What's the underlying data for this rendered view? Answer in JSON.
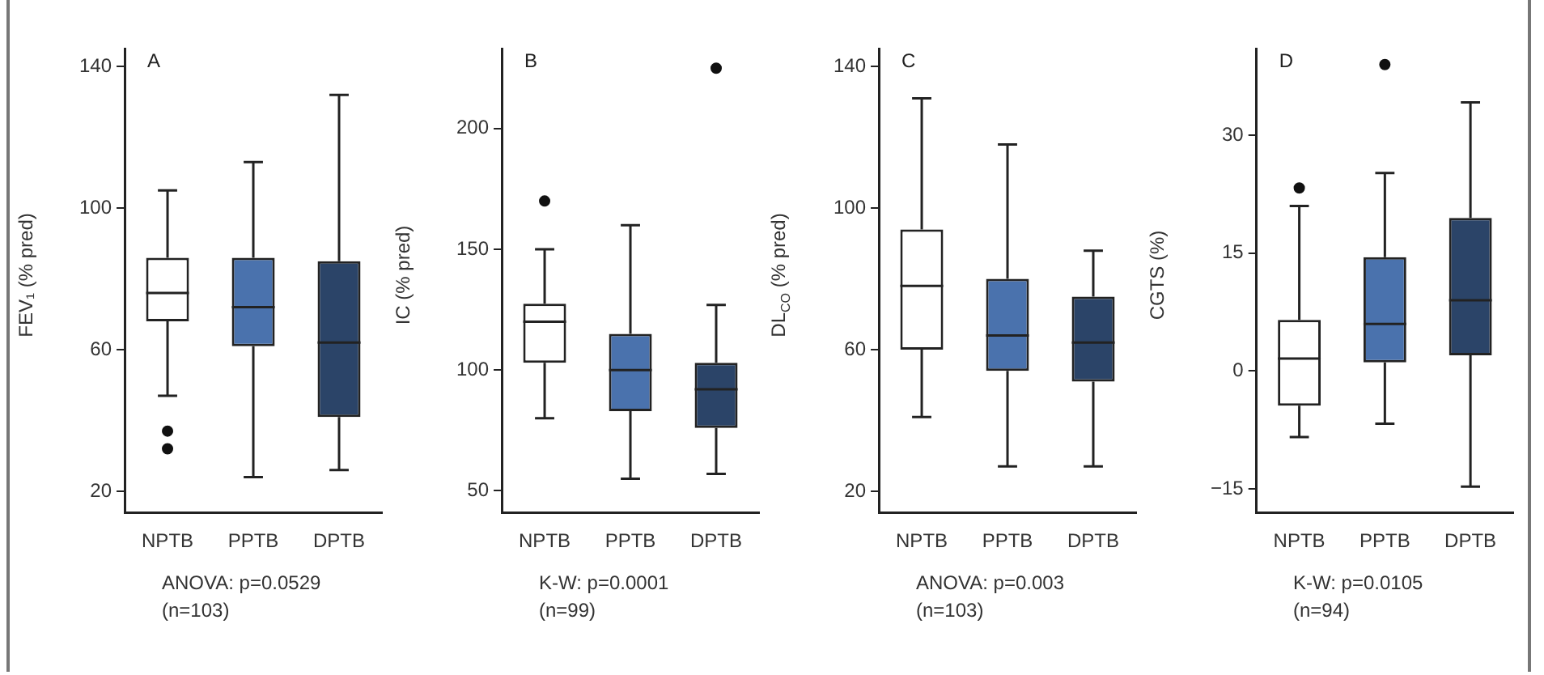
{
  "chart_data": [
    {
      "type": "box",
      "title": "A",
      "ylabel": "FEV₁ (% pred)",
      "categories": [
        "NPTB",
        "PPTB",
        "DPTB"
      ],
      "colors": [
        "#ffffff",
        "#4a72ad",
        "#2b4468"
      ],
      "ylim": [
        14,
        145
      ],
      "yticks": [
        20,
        60,
        100,
        140
      ],
      "boxes": [
        {
          "low": 47,
          "q1": 68,
          "median": 76,
          "q3": 86,
          "high": 105,
          "outliers": [
            37,
            32
          ]
        },
        {
          "low": 24,
          "q1": 61,
          "median": 72,
          "q3": 86,
          "high": 113
        },
        {
          "low": 26,
          "q1": 41,
          "median": 62,
          "q3": 85,
          "high": 132
        }
      ],
      "annotations": [
        "ANOVA: p=0.0529",
        "(n=103)"
      ]
    },
    {
      "type": "box",
      "title": "B",
      "ylabel": "IC (% pred)",
      "categories": [
        "NPTB",
        "PPTB",
        "DPTB"
      ],
      "colors": [
        "#ffffff",
        "#4a72ad",
        "#2b4468"
      ],
      "ylim": [
        41,
        233
      ],
      "yticks": [
        50,
        100,
        150,
        200
      ],
      "boxes": [
        {
          "low": 80,
          "q1": 103,
          "median": 120,
          "q3": 127.5,
          "high": 150,
          "outliers": [
            170
          ]
        },
        {
          "low": 55,
          "q1": 83,
          "median": 100,
          "q3": 115,
          "high": 160
        },
        {
          "low": 57,
          "q1": 76,
          "median": 92,
          "q3": 103,
          "high": 127,
          "outliers": [
            225
          ]
        }
      ],
      "annotations": [
        "K-W: p=0.0001",
        "(n=99)"
      ]
    },
    {
      "type": "box",
      "title": "C",
      "ylabel": "DL$_{CO}$ (% pred)",
      "categories": [
        "NPTB",
        "PPTB",
        "DPTB"
      ],
      "colors": [
        "#ffffff",
        "#4a72ad",
        "#2b4468"
      ],
      "ylim": [
        14,
        145
      ],
      "yticks": [
        20,
        60,
        100,
        140
      ],
      "boxes": [
        {
          "low": 41,
          "q1": 60,
          "median": 78,
          "q3": 94,
          "high": 131
        },
        {
          "low": 27,
          "q1": 54,
          "median": 64,
          "q3": 80,
          "high": 118
        },
        {
          "low": 27,
          "q1": 51,
          "median": 62,
          "q3": 75,
          "high": 88
        }
      ],
      "annotations": [
        "ANOVA: p=0.003",
        "(n=103)"
      ]
    },
    {
      "type": "box",
      "title": "D",
      "ylabel": "CGTS (%)",
      "categories": [
        "NPTB",
        "PPTB",
        "DPTB"
      ],
      "colors": [
        "#ffffff",
        "#4a72ad",
        "#2b4468"
      ],
      "ylim": [
        -18,
        41
      ],
      "yticks": [
        -15,
        0,
        15,
        30
      ],
      "boxes": [
        {
          "low": -8.4,
          "q1": -4.4,
          "median": 1.6,
          "q3": 6.5,
          "high": 21,
          "outliers": [
            23.3
          ]
        },
        {
          "low": -6.7,
          "q1": 1.1,
          "median": 6,
          "q3": 14.5,
          "high": 25.2,
          "outliers": [
            39
          ]
        },
        {
          "low": -14.7,
          "q1": 2,
          "median": 9,
          "q3": 19.5,
          "high": 34.2
        }
      ],
      "annotations": [
        "K-W: p=0.0105",
        "(n=94)"
      ]
    }
  ]
}
